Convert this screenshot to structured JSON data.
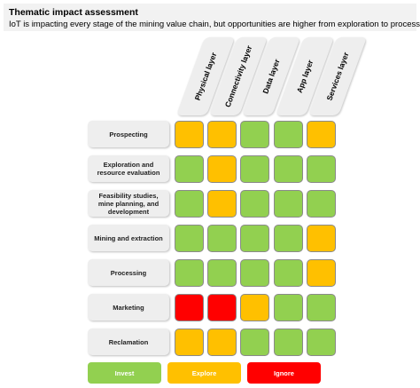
{
  "header": {
    "title": "Thematic impact assessment",
    "subtitle": "IoT is impacting every stage of the mining value chain, but opportunities are higher from exploration to processing"
  },
  "colors": {
    "invest": "#92d050",
    "explore": "#ffc000",
    "ignore": "#ff0000"
  },
  "columns": [
    "Physical layer",
    "Connectivity layer",
    "Data layer",
    "App layer",
    "Services layer"
  ],
  "rows": [
    {
      "label": "Prospecting",
      "ratings": [
        "explore",
        "explore",
        "invest",
        "invest",
        "explore"
      ]
    },
    {
      "label": "Exploration and\nresource evaluation",
      "ratings": [
        "invest",
        "explore",
        "invest",
        "invest",
        "invest"
      ]
    },
    {
      "label": "Feasibility studies,\nmine planning, and\ndevelopment",
      "ratings": [
        "invest",
        "explore",
        "invest",
        "invest",
        "invest"
      ]
    },
    {
      "label": "Mining and extraction",
      "ratings": [
        "invest",
        "invest",
        "invest",
        "invest",
        "explore"
      ]
    },
    {
      "label": "Processing",
      "ratings": [
        "invest",
        "invest",
        "invest",
        "invest",
        "explore"
      ]
    },
    {
      "label": "Marketing",
      "ratings": [
        "ignore",
        "ignore",
        "explore",
        "invest",
        "invest"
      ]
    },
    {
      "label": "Reclamation",
      "ratings": [
        "explore",
        "explore",
        "invest",
        "invest",
        "invest"
      ]
    }
  ],
  "legend": [
    {
      "key": "invest",
      "label": "Invest"
    },
    {
      "key": "explore",
      "label": "Explore"
    },
    {
      "key": "ignore",
      "label": "Ignore"
    }
  ]
}
